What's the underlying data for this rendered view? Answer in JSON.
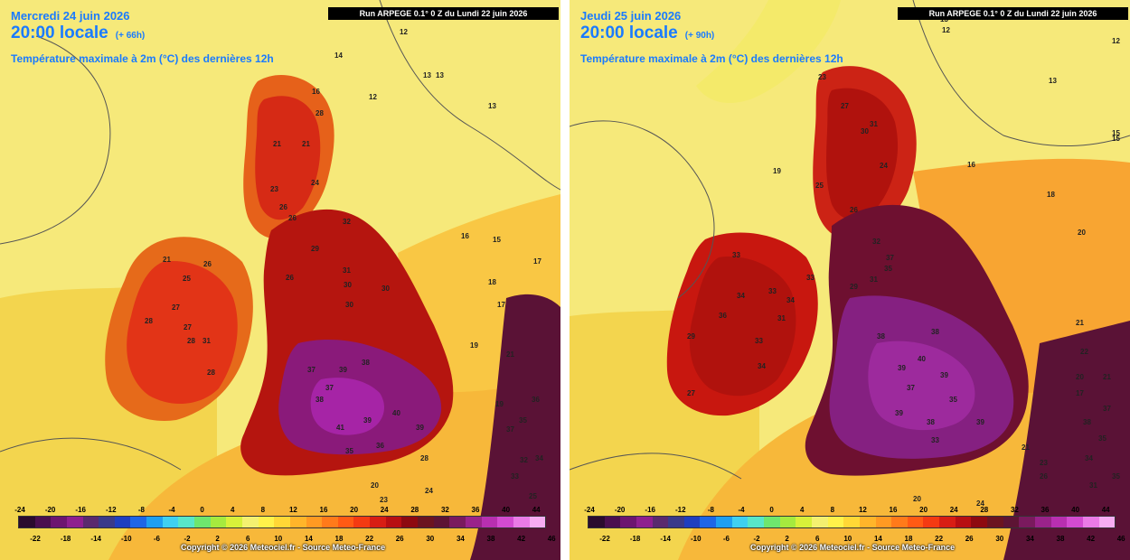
{
  "scale": {
    "ticks_top": [
      "-24",
      "-20",
      "-16",
      "-12",
      "-8",
      "-4",
      "0",
      "4",
      "8",
      "12",
      "16",
      "20",
      "24",
      "28",
      "32",
      "36",
      "40",
      "44"
    ],
    "ticks_bottom": [
      "-22",
      "-18",
      "-14",
      "-10",
      "-6",
      "-2",
      "2",
      "6",
      "10",
      "14",
      "18",
      "22",
      "26",
      "30",
      "34",
      "38",
      "42",
      "46"
    ],
    "colors": [
      "#2b0b2e",
      "#4a0f4f",
      "#6d1570",
      "#8e1f8f",
      "#5a2a6e",
      "#3a3a8a",
      "#1f3fbf",
      "#1e66e6",
      "#1f9ff0",
      "#3fd0f0",
      "#58e6c8",
      "#6ee66e",
      "#a6ea3e",
      "#d8f03a",
      "#f4f070",
      "#fff24a",
      "#ffd836",
      "#ffb52a",
      "#ff9a22",
      "#ff7a1a",
      "#ff5a14",
      "#f43a12",
      "#d81e14",
      "#b80f12",
      "#8e0a10",
      "#6b1420",
      "#5d1434",
      "#7a1a5e",
      "#9a238a",
      "#b82fb0",
      "#d34bd0",
      "#ea7be6",
      "#f7adf2"
    ]
  },
  "copyright": "Copyright © 2026 Meteociel.fr - Source Meteo-France",
  "panels": [
    {
      "date": "Mercredi 24 juin 2026",
      "time": "20:00 locale",
      "lead": "(+ 66h)",
      "parameter": "Température maximale à 2m (°C) des dernières 12h",
      "run": "Run ARPEGE 0.1° 0 Z du Lundi 22 juin 2026",
      "labels": [
        {
          "v": "13"
        },
        {
          "v": "12"
        },
        {
          "v": "14"
        },
        {
          "v": "13"
        },
        {
          "v": "12"
        },
        {
          "v": "13"
        },
        {
          "v": "16"
        },
        {
          "v": "21"
        },
        {
          "v": "28"
        },
        {
          "v": "26"
        },
        {
          "v": "23"
        },
        {
          "v": "21"
        },
        {
          "v": "24"
        },
        {
          "v": "26"
        },
        {
          "v": "29"
        },
        {
          "v": "32"
        },
        {
          "v": "31"
        },
        {
          "v": "30"
        },
        {
          "v": "26"
        },
        {
          "v": "30"
        },
        {
          "v": "30"
        },
        {
          "v": "21"
        },
        {
          "v": "28"
        },
        {
          "v": "27"
        },
        {
          "v": "28"
        },
        {
          "v": "31"
        },
        {
          "v": "28"
        },
        {
          "v": "25"
        },
        {
          "v": "27"
        },
        {
          "v": "26"
        },
        {
          "v": "37"
        },
        {
          "v": "39"
        },
        {
          "v": "38"
        },
        {
          "v": "37"
        },
        {
          "v": "39"
        },
        {
          "v": "40"
        },
        {
          "v": "41"
        },
        {
          "v": "39"
        },
        {
          "v": "38"
        },
        {
          "v": "36"
        },
        {
          "v": "35"
        },
        {
          "v": "19"
        },
        {
          "v": "17"
        },
        {
          "v": "15"
        },
        {
          "v": "18"
        },
        {
          "v": "21"
        },
        {
          "v": "19"
        },
        {
          "v": "17"
        },
        {
          "v": "16"
        },
        {
          "v": "36"
        },
        {
          "v": "35"
        },
        {
          "v": "37"
        },
        {
          "v": "34"
        },
        {
          "v": "32"
        },
        {
          "v": "33"
        },
        {
          "v": "25"
        },
        {
          "v": "28"
        },
        {
          "v": "24"
        },
        {
          "v": "23"
        },
        {
          "v": "20"
        }
      ]
    },
    {
      "date": "Jeudi 25 juin 2026",
      "time": "20:00 locale",
      "lead": "(+ 90h)",
      "parameter": "Température maximale à 2m (°C) des dernières 12h",
      "run": "Run ARPEGE 0.1° 0 Z du Lundi 22 juin 2026",
      "labels": [
        {
          "v": "13"
        },
        {
          "v": "12"
        },
        {
          "v": "13"
        },
        {
          "v": "15"
        },
        {
          "v": "12"
        },
        {
          "v": "19"
        },
        {
          "v": "16"
        },
        {
          "v": "23"
        },
        {
          "v": "27"
        },
        {
          "v": "30"
        },
        {
          "v": "31"
        },
        {
          "v": "24"
        },
        {
          "v": "25"
        },
        {
          "v": "26"
        },
        {
          "v": "32"
        },
        {
          "v": "37"
        },
        {
          "v": "35"
        },
        {
          "v": "31"
        },
        {
          "v": "29"
        },
        {
          "v": "33"
        },
        {
          "v": "34"
        },
        {
          "v": "33"
        },
        {
          "v": "34"
        },
        {
          "v": "33"
        },
        {
          "v": "31"
        },
        {
          "v": "36"
        },
        {
          "v": "33"
        },
        {
          "v": "29"
        },
        {
          "v": "34"
        },
        {
          "v": "27"
        },
        {
          "v": "38"
        },
        {
          "v": "39"
        },
        {
          "v": "40"
        },
        {
          "v": "38"
        },
        {
          "v": "39"
        },
        {
          "v": "37"
        },
        {
          "v": "39"
        },
        {
          "v": "38"
        },
        {
          "v": "39"
        },
        {
          "v": "35"
        },
        {
          "v": "33"
        },
        {
          "v": "18"
        },
        {
          "v": "20"
        },
        {
          "v": "21"
        },
        {
          "v": "22"
        },
        {
          "v": "20"
        },
        {
          "v": "21"
        },
        {
          "v": "17"
        },
        {
          "v": "15"
        },
        {
          "v": "37"
        },
        {
          "v": "38"
        },
        {
          "v": "35"
        },
        {
          "v": "34"
        },
        {
          "v": "35"
        },
        {
          "v": "31"
        },
        {
          "v": "23"
        },
        {
          "v": "26"
        },
        {
          "v": "20"
        },
        {
          "v": "24"
        },
        {
          "v": "21"
        }
      ]
    }
  ]
}
